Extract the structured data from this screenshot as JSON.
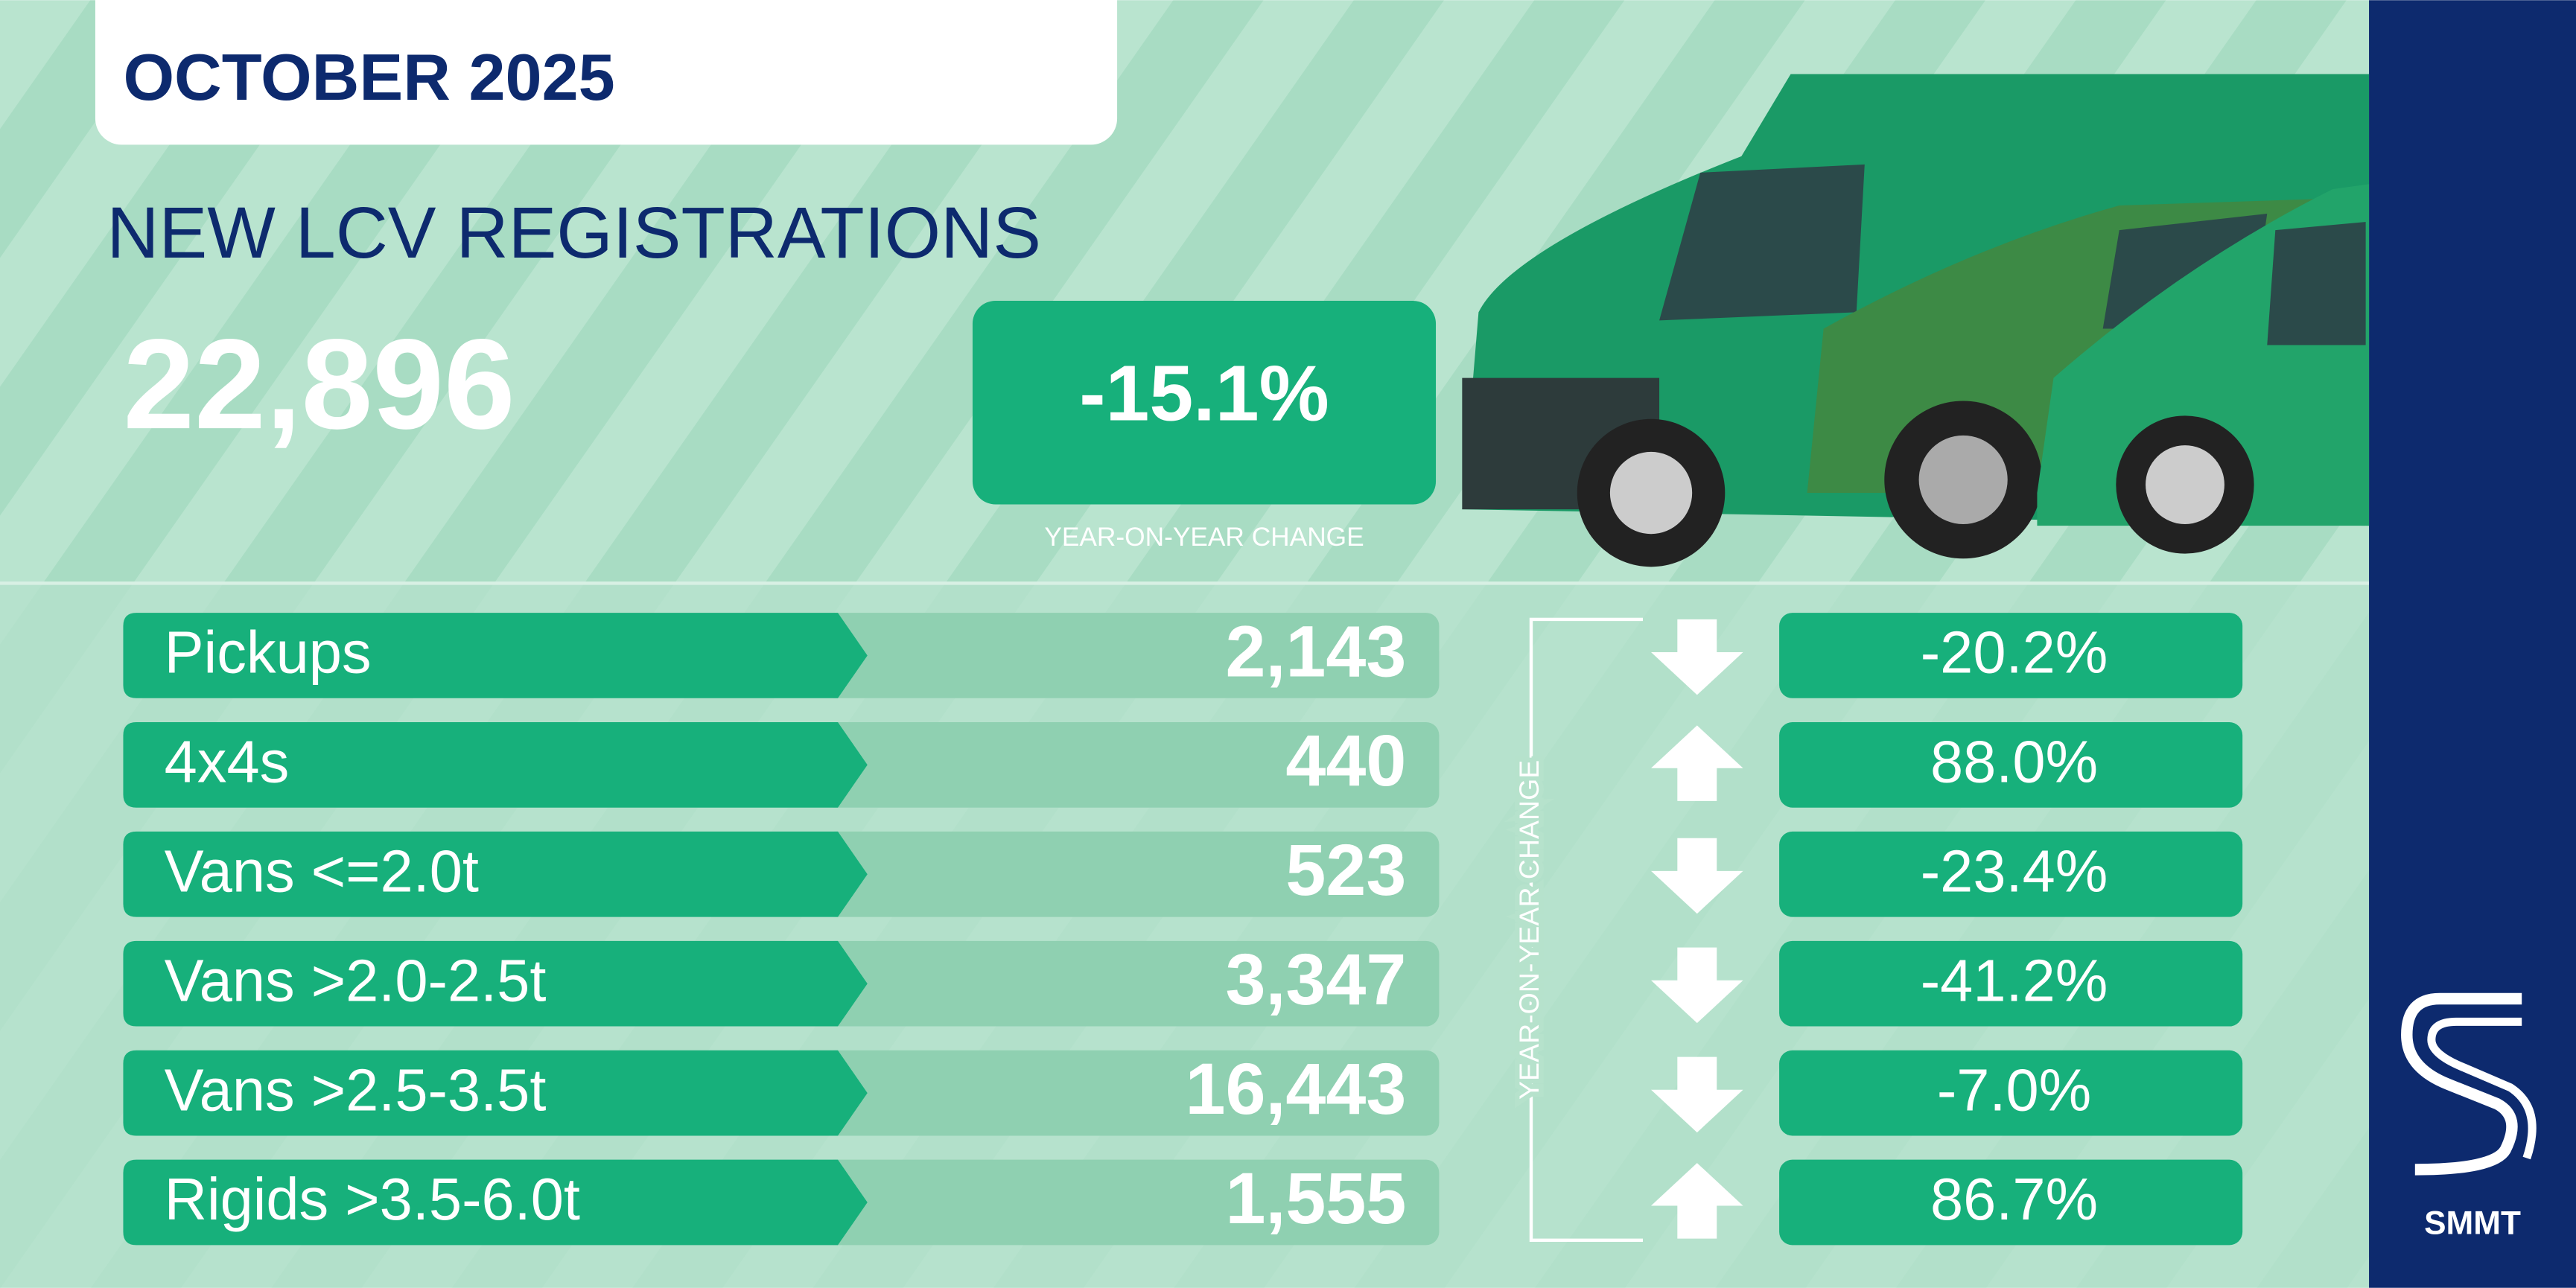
{
  "header": {
    "date": "OCTOBER 2025",
    "title": "NEW LCV REGISTRATIONS"
  },
  "total": {
    "value": "22,896",
    "change": "-15.1%",
    "change_label": "YEAR-ON-YEAR CHANGE"
  },
  "table": {
    "side_label": "YEAR-ON-YEAR CHANGE",
    "rows": [
      {
        "label": "Pickups",
        "value": "2,143",
        "change": "-20.2%",
        "trend": "down"
      },
      {
        "label": "4x4s",
        "value": "440",
        "change": "88.0%",
        "trend": "up"
      },
      {
        "label": "Vans <=2.0t",
        "value": "523",
        "change": "-23.4%",
        "trend": "down"
      },
      {
        "label": "Vans >2.0-2.5t",
        "value": "3,347",
        "change": "-41.2%",
        "trend": "down"
      },
      {
        "label": "Vans >2.5-3.5t",
        "value": "16,443",
        "change": "-7.0%",
        "trend": "down"
      },
      {
        "label": "Rigids >3.5-6.0t",
        "value": "1,555",
        "change": "86.7%",
        "trend": "up"
      }
    ]
  },
  "logo": {
    "text": "SMMT"
  }
}
